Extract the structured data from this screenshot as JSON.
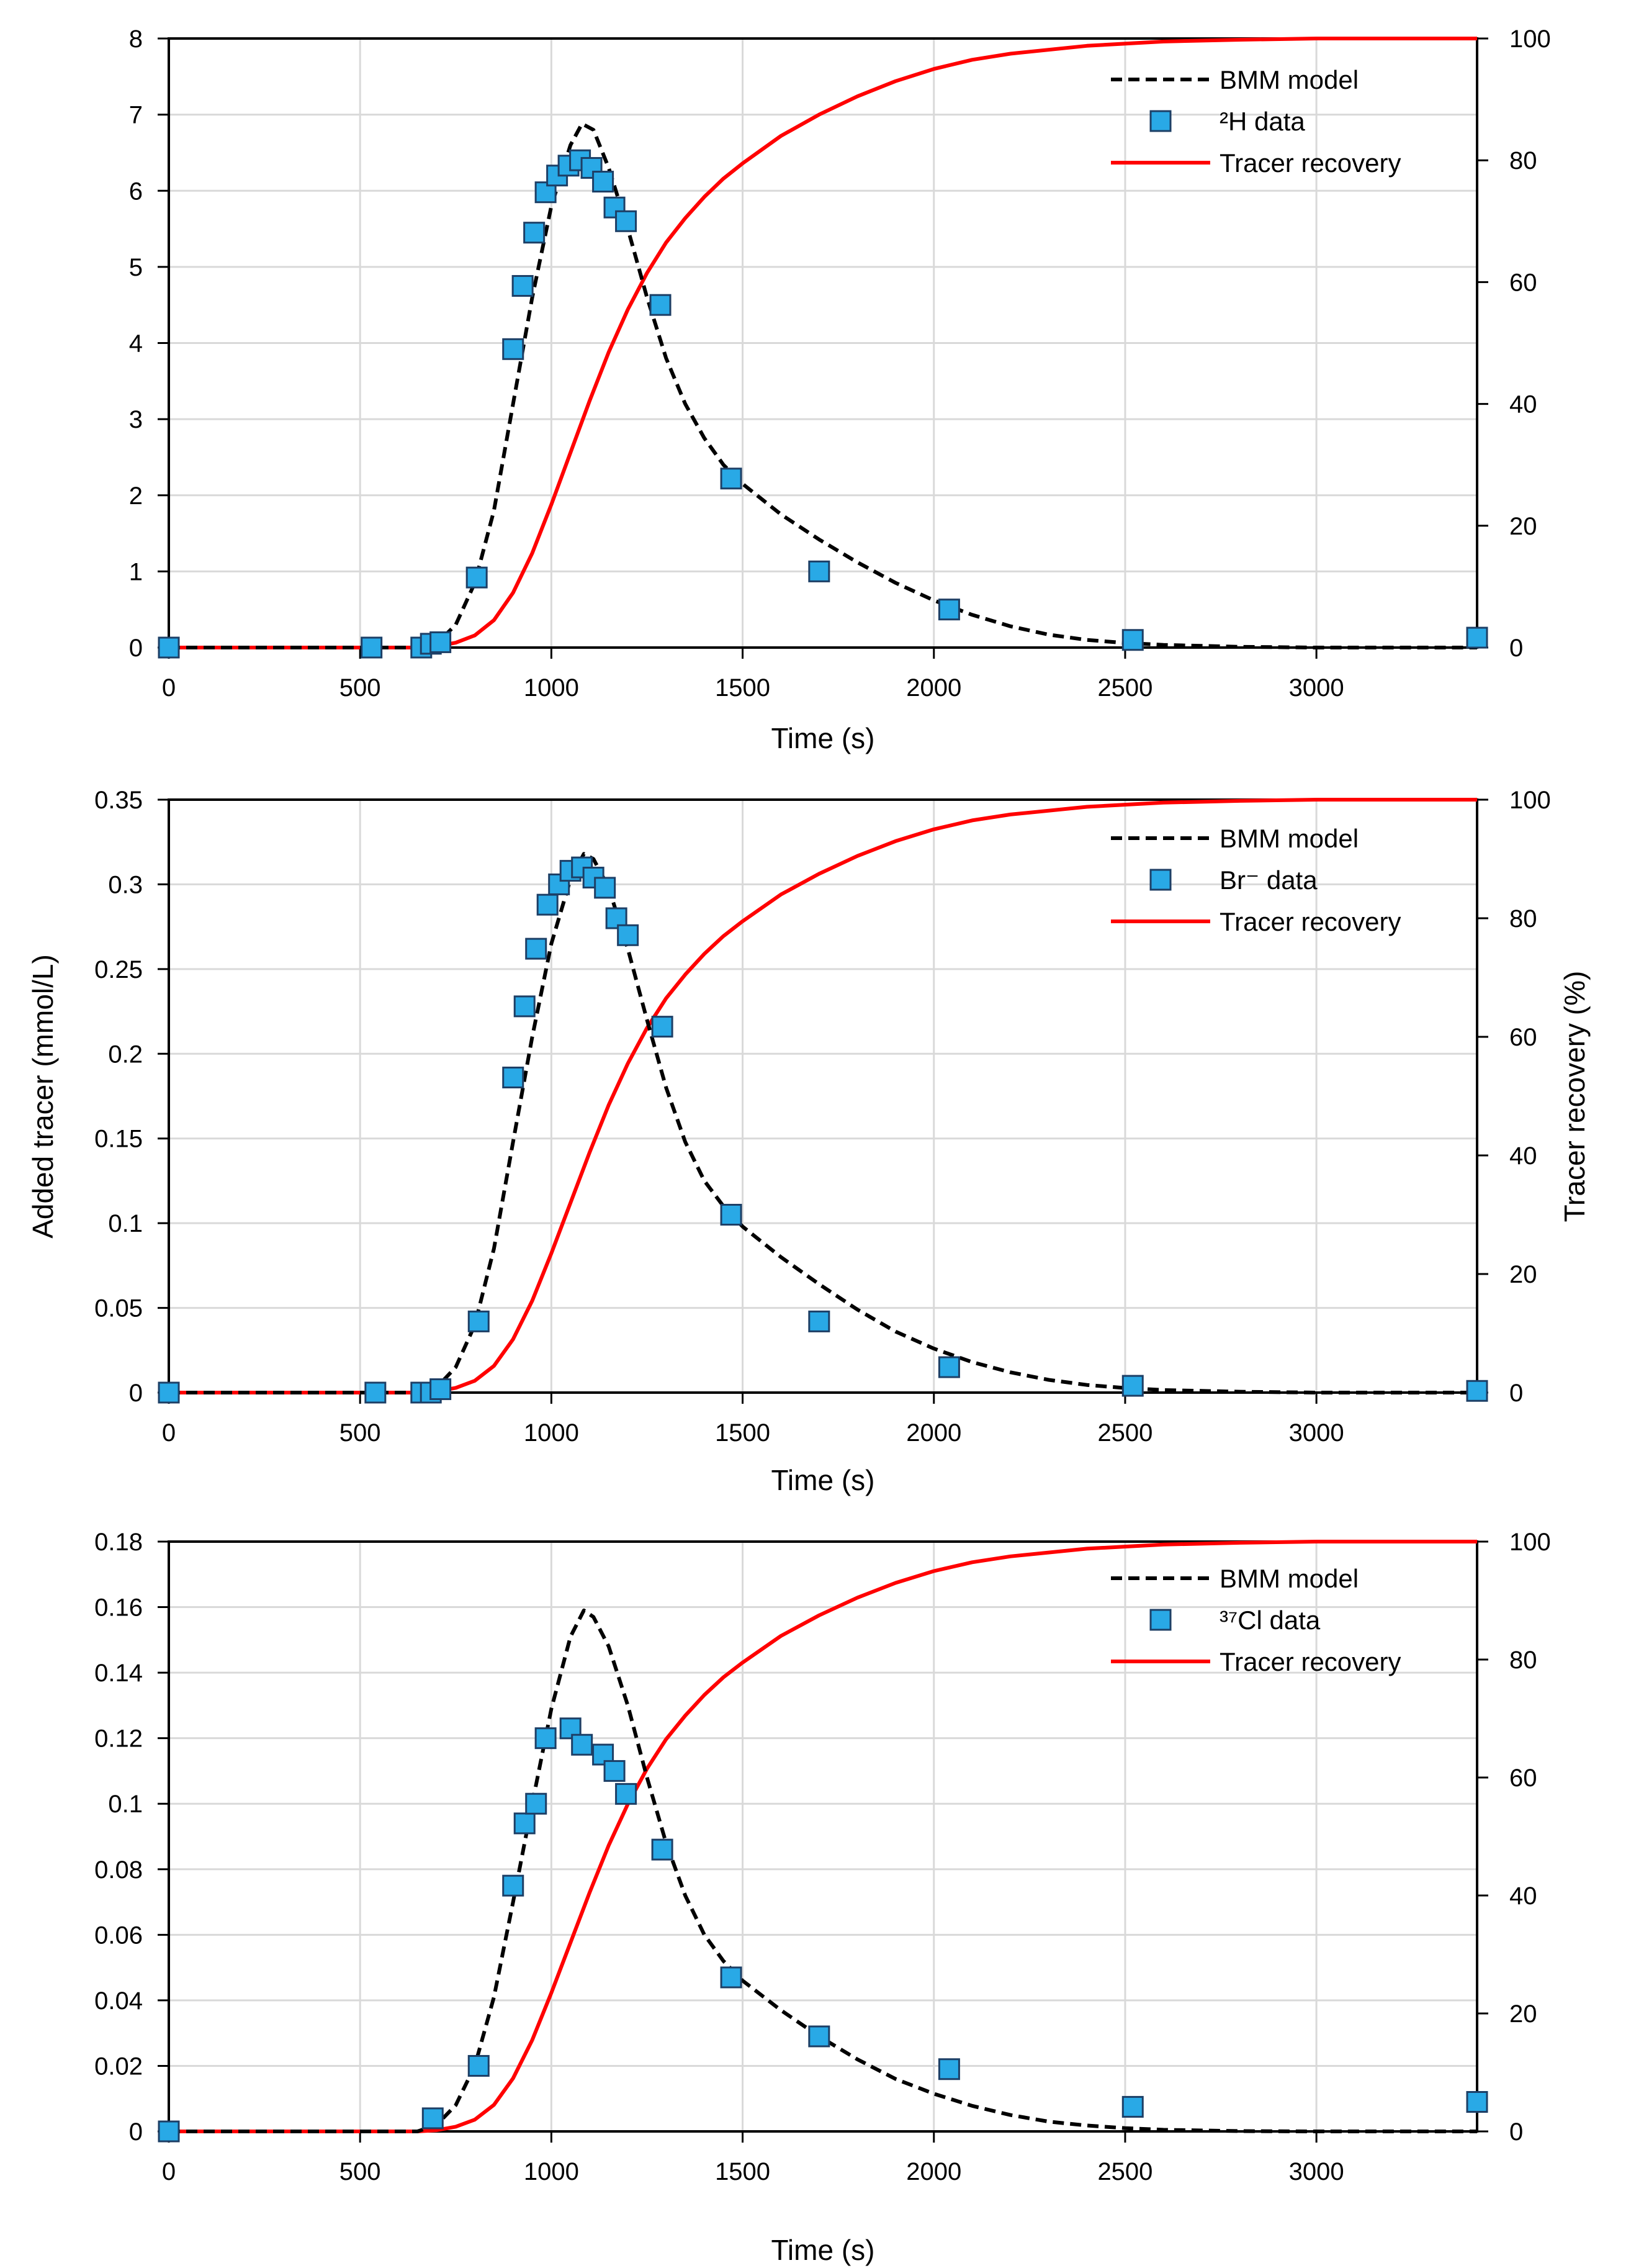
{
  "chart_data": [
    {
      "type": "line",
      "title": "",
      "xlabel": "Time (s)",
      "ylabel": "",
      "y2label": "",
      "xlim": [
        0,
        3420
      ],
      "ylim": [
        0,
        8
      ],
      "y2lim": [
        0,
        100
      ],
      "xticks": [
        "0",
        "500",
        "1000",
        "1500",
        "2000",
        "2500",
        "3000"
      ],
      "yticks": [
        "0",
        "1",
        "2",
        "3",
        "4",
        "5",
        "6",
        "7",
        "8"
      ],
      "y2ticks": [
        "0",
        "20",
        "40",
        "60",
        "80",
        "100"
      ],
      "grid": true,
      "legend_position": "top-right",
      "legend": {
        "model": "BMM model",
        "data": "²H data",
        "recovery": "Tracer recovery"
      },
      "series": [
        {
          "name": "²H data",
          "kind": "scatter",
          "x": [
            0,
            530,
            660,
            685,
            710,
            805,
            900,
            925,
            955,
            985,
            1015,
            1045,
            1075,
            1105,
            1135,
            1165,
            1195,
            1285,
            1470,
            1700,
            2040,
            2520,
            3420
          ],
          "y": [
            0.0,
            0.0,
            0.0,
            0.05,
            0.07,
            0.92,
            3.92,
            4.75,
            5.45,
            5.98,
            6.2,
            6.33,
            6.4,
            6.3,
            6.12,
            5.78,
            5.6,
            4.5,
            2.22,
            1.0,
            0.5,
            0.1,
            0.13
          ]
        },
        {
          "name": "BMM model",
          "kind": "line",
          "x": [
            0,
            600,
            650,
            700,
            750,
            800,
            850,
            900,
            950,
            1000,
            1050,
            1080,
            1110,
            1150,
            1200,
            1250,
            1300,
            1350,
            1400,
            1450,
            1500,
            1600,
            1700,
            1800,
            1900,
            2000,
            2100,
            2200,
            2300,
            2400,
            2500,
            2600,
            2800,
            3000,
            3200,
            3420
          ],
          "y": [
            0.0,
            0.0,
            0.0,
            0.05,
            0.3,
            0.85,
            1.8,
            3.2,
            4.6,
            5.8,
            6.6,
            6.88,
            6.8,
            6.3,
            5.5,
            4.6,
            3.8,
            3.2,
            2.75,
            2.4,
            2.15,
            1.75,
            1.42,
            1.12,
            0.85,
            0.62,
            0.43,
            0.28,
            0.17,
            0.1,
            0.06,
            0.035,
            0.01,
            0.0,
            0.0,
            0.0
          ]
        },
        {
          "name": "Tracer recovery",
          "kind": "line",
          "axis": "right",
          "x": [
            0,
            650,
            700,
            750,
            800,
            850,
            900,
            950,
            1000,
            1050,
            1100,
            1150,
            1200,
            1250,
            1300,
            1350,
            1400,
            1450,
            1500,
            1600,
            1700,
            1800,
            1900,
            2000,
            2100,
            2200,
            2400,
            2600,
            2800,
            3000,
            3420
          ],
          "y": [
            0.0,
            0.0,
            0.2,
            0.8,
            2.0,
            4.5,
            9.0,
            15.5,
            23.5,
            32.0,
            40.5,
            48.5,
            55.5,
            61.5,
            66.5,
            70.5,
            74.0,
            77.0,
            79.5,
            84.0,
            87.5,
            90.5,
            93.0,
            95.0,
            96.5,
            97.5,
            98.8,
            99.5,
            99.8,
            100.0,
            100.0
          ]
        }
      ]
    },
    {
      "type": "line",
      "title": "",
      "xlabel": "Time (s)",
      "ylabel": "Added tracer (mmol/L)",
      "y2label": "Tracer recovery (%)",
      "xlim": [
        0,
        3420
      ],
      "ylim": [
        0,
        0.35
      ],
      "y2lim": [
        0,
        100
      ],
      "xticks": [
        "0",
        "500",
        "1000",
        "1500",
        "2000",
        "2500",
        "3000"
      ],
      "yticks": [
        "0",
        "0.05",
        "0.1",
        "0.15",
        "0.2",
        "0.25",
        "0.3",
        "0.35"
      ],
      "y2ticks": [
        "0",
        "20",
        "40",
        "60",
        "80",
        "100"
      ],
      "grid": true,
      "legend_position": "top-right",
      "legend": {
        "model": "BMM model",
        "data": "Br⁻ data",
        "recovery": "Tracer recovery"
      },
      "series": [
        {
          "name": "Br⁻ data",
          "kind": "scatter",
          "x": [
            0,
            540,
            660,
            685,
            710,
            810,
            900,
            930,
            960,
            990,
            1020,
            1050,
            1080,
            1110,
            1140,
            1170,
            1200,
            1290,
            1470,
            1700,
            2040,
            2520,
            3420
          ],
          "y": [
            0.0,
            0.0,
            0.0,
            0.0,
            0.002,
            0.042,
            0.186,
            0.228,
            0.262,
            0.288,
            0.3,
            0.308,
            0.31,
            0.304,
            0.298,
            0.28,
            0.27,
            0.216,
            0.105,
            0.042,
            0.015,
            0.004,
            0.001
          ]
        },
        {
          "name": "BMM model",
          "kind": "line",
          "x": [
            0,
            600,
            650,
            700,
            750,
            800,
            850,
            900,
            950,
            1000,
            1050,
            1085,
            1110,
            1150,
            1200,
            1250,
            1300,
            1350,
            1400,
            1450,
            1500,
            1600,
            1700,
            1800,
            1900,
            2000,
            2100,
            2200,
            2300,
            2400,
            2500,
            2600,
            2800,
            3000,
            3200,
            3420
          ],
          "y": [
            0.0,
            0.0,
            0.0,
            0.003,
            0.015,
            0.04,
            0.085,
            0.148,
            0.21,
            0.265,
            0.303,
            0.318,
            0.315,
            0.298,
            0.262,
            0.22,
            0.18,
            0.148,
            0.125,
            0.11,
            0.098,
            0.08,
            0.064,
            0.049,
            0.036,
            0.026,
            0.018,
            0.012,
            0.0075,
            0.0045,
            0.0027,
            0.0015,
            0.0005,
            0.0,
            0.0,
            0.0
          ]
        },
        {
          "name": "Tracer recovery",
          "kind": "line",
          "axis": "right",
          "x": [
            0,
            650,
            700,
            750,
            800,
            850,
            900,
            950,
            1000,
            1050,
            1100,
            1150,
            1200,
            1250,
            1300,
            1350,
            1400,
            1450,
            1500,
            1600,
            1700,
            1800,
            1900,
            2000,
            2100,
            2200,
            2400,
            2600,
            2800,
            3000,
            3420
          ],
          "y": [
            0.0,
            0.0,
            0.2,
            0.8,
            2.0,
            4.5,
            9.0,
            15.5,
            23.5,
            32.0,
            40.5,
            48.5,
            55.5,
            61.5,
            66.5,
            70.5,
            74.0,
            77.0,
            79.5,
            84.0,
            87.5,
            90.5,
            93.0,
            95.0,
            96.5,
            97.5,
            98.8,
            99.5,
            99.8,
            100.0,
            100.0
          ]
        }
      ]
    },
    {
      "type": "line",
      "title": "",
      "xlabel": "Time (s)",
      "ylabel": "",
      "y2label": "",
      "xlim": [
        0,
        3420
      ],
      "ylim": [
        0,
        0.18
      ],
      "y2lim": [
        0,
        100
      ],
      "xticks": [
        "0",
        "500",
        "1000",
        "1500",
        "2000",
        "2500",
        "3000"
      ],
      "yticks": [
        "0",
        "0.02",
        "0.04",
        "0.06",
        "0.08",
        "0.1",
        "0.12",
        "0.14",
        "0.16",
        "0.18"
      ],
      "y2ticks": [
        "0",
        "20",
        "40",
        "60",
        "80",
        "100"
      ],
      "grid": true,
      "legend_position": "top-right",
      "legend": {
        "model": "BMM model",
        "data": "³⁷Cl data",
        "recovery": "Tracer recovery"
      },
      "series": [
        {
          "name": "³⁷Cl data",
          "kind": "scatter",
          "x": [
            0,
            690,
            810,
            900,
            930,
            960,
            985,
            1050,
            1080,
            1135,
            1165,
            1195,
            1290,
            1470,
            1700,
            2040,
            2520,
            3420
          ],
          "y": [
            0.0,
            0.004,
            0.02,
            0.075,
            0.094,
            0.1,
            0.12,
            0.123,
            0.118,
            0.115,
            0.11,
            0.103,
            0.086,
            0.047,
            0.029,
            0.019,
            0.0075,
            0.009
          ]
        },
        {
          "name": "BMM model",
          "kind": "line",
          "x": [
            0,
            600,
            650,
            700,
            750,
            800,
            850,
            900,
            950,
            1000,
            1050,
            1085,
            1110,
            1150,
            1200,
            1250,
            1300,
            1350,
            1400,
            1450,
            1500,
            1600,
            1700,
            1800,
            1900,
            2000,
            2100,
            2200,
            2300,
            2400,
            2500,
            2600,
            2800,
            3000,
            3200,
            3420
          ],
          "y": [
            0.0,
            0.0,
            0.0,
            0.002,
            0.008,
            0.02,
            0.041,
            0.07,
            0.1,
            0.129,
            0.151,
            0.159,
            0.157,
            0.148,
            0.13,
            0.108,
            0.088,
            0.072,
            0.06,
            0.052,
            0.046,
            0.037,
            0.029,
            0.022,
            0.016,
            0.0115,
            0.0078,
            0.005,
            0.003,
            0.0018,
            0.001,
            0.0005,
            0.0001,
            0.0,
            0.0,
            0.0
          ]
        },
        {
          "name": "Tracer recovery",
          "kind": "line",
          "axis": "right",
          "x": [
            0,
            650,
            700,
            750,
            800,
            850,
            900,
            950,
            1000,
            1050,
            1100,
            1150,
            1200,
            1250,
            1300,
            1350,
            1400,
            1450,
            1500,
            1600,
            1700,
            1800,
            1900,
            2000,
            2100,
            2200,
            2400,
            2600,
            2800,
            3000,
            3420
          ],
          "y": [
            0.0,
            0.0,
            0.2,
            0.8,
            2.0,
            4.5,
            9.0,
            15.5,
            23.5,
            32.0,
            40.5,
            48.5,
            55.5,
            61.5,
            66.5,
            70.5,
            74.0,
            77.0,
            79.5,
            84.0,
            87.5,
            90.5,
            93.0,
            95.0,
            96.5,
            97.5,
            98.8,
            99.5,
            99.8,
            100.0,
            100.0
          ]
        }
      ]
    }
  ],
  "colors": {
    "marker_fill": "#29a9e6",
    "marker_stroke": "#1d3f66",
    "model_line": "#000000",
    "recovery_line": "#ff0000",
    "grid": "#d9d9d9"
  }
}
